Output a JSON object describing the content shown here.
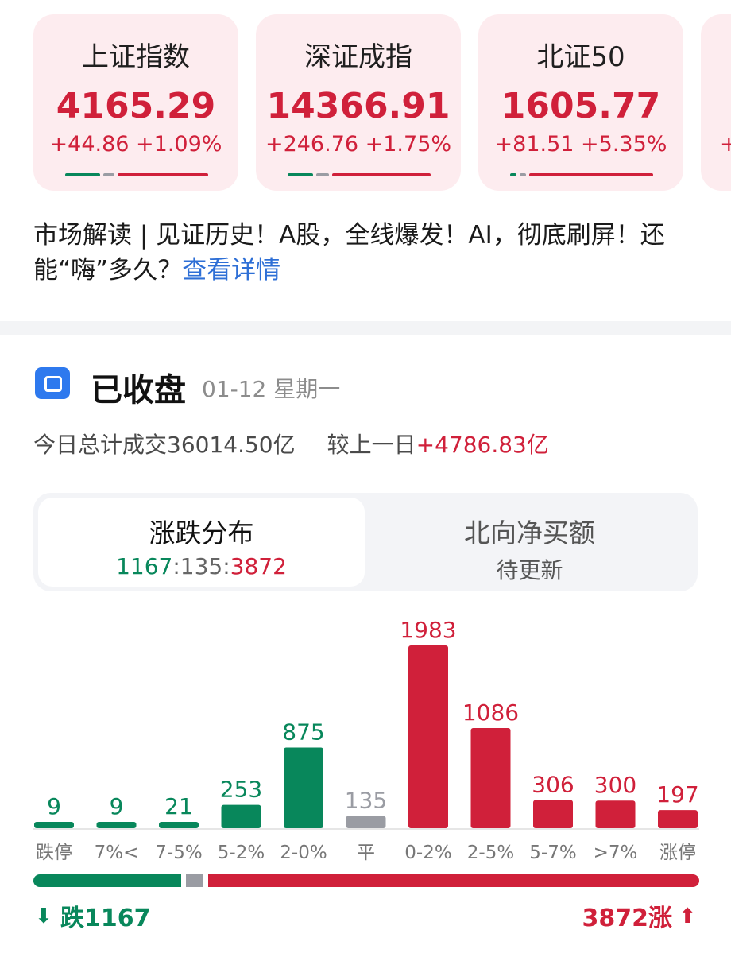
{
  "indices": [
    {
      "name": "上证指数",
      "value": "4165.29",
      "change": "+44.86 +1.09%"
    },
    {
      "name": "深证成指",
      "value": "14366.91",
      "change": "+246.76 +1.75%"
    },
    {
      "name": "北证50",
      "value": "1605.77",
      "change": "+81.51 +5.35%"
    },
    {
      "name": "",
      "value": "",
      "change": "+"
    }
  ],
  "news": {
    "text": "市场解读 | 见证历史！A股，全线爆发！AI，彻底刷屏！还能“嗨”多久？",
    "link": "查看详情"
  },
  "status": {
    "title": "已收盘",
    "date": "01-12 星期一"
  },
  "turnover": {
    "label": "今日总计成交36014.50亿",
    "compare_label": "较上一日",
    "compare_value": "+4786.83亿"
  },
  "tabs": {
    "distribution": {
      "title": "涨跌分布",
      "down": "1167",
      "sep1": ":",
      "flat": "135",
      "sep2": ":",
      "up": "3872"
    },
    "northbound": {
      "title": "北向净买额",
      "sub": "待更新"
    }
  },
  "colors": {
    "down": "#08875b",
    "flat": "#9a9ca3",
    "up": "#d0203a"
  },
  "chart_data": {
    "type": "bar",
    "categories": [
      "跌停",
      "7%<",
      "7-5%",
      "5-2%",
      "2-0%",
      "平",
      "0-2%",
      "2-5%",
      "5-7%",
      ">7%",
      "涨停"
    ],
    "values": [
      9,
      9,
      21,
      253,
      875,
      135,
      1983,
      1086,
      306,
      300,
      197
    ],
    "colors": [
      "down",
      "down",
      "down",
      "down",
      "down",
      "flat",
      "up",
      "up",
      "up",
      "up",
      "up"
    ]
  },
  "summary": {
    "down_label": "跌1167",
    "up_label": "3872涨",
    "down_count": 1167,
    "flat_count": 135,
    "up_count": 3872,
    "down_icon": "arrow-down-icon",
    "up_icon": "arrow-up-icon"
  }
}
